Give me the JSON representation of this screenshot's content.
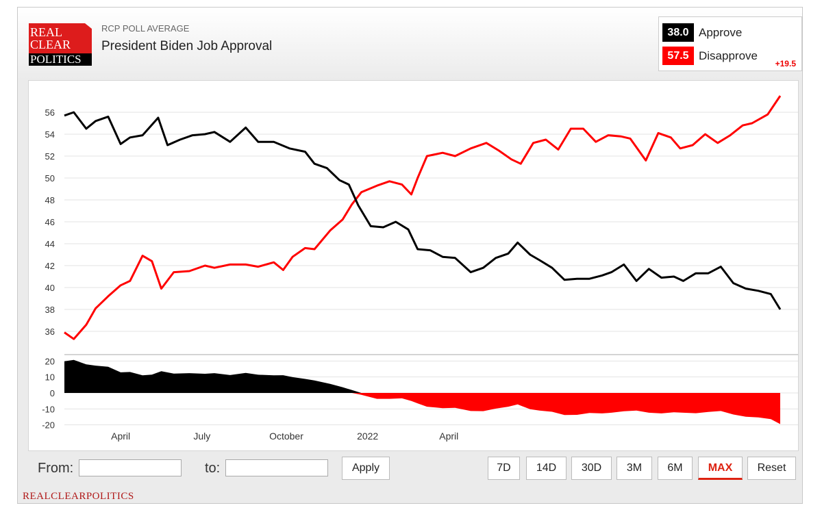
{
  "header": {
    "subtitle": "RCP POLL AVERAGE",
    "title": "President Biden Job Approval",
    "logo_lines": [
      "REAL",
      "CLEAR",
      "POLITICS"
    ]
  },
  "legend": {
    "approve": {
      "value": "38.0",
      "label": "Approve",
      "color": "#000000"
    },
    "disapprove": {
      "value": "57.5",
      "label": "Disapprove",
      "color": "#ff0000",
      "spread": "+19.5"
    }
  },
  "controls": {
    "from_label": "From:",
    "to_label": "to:",
    "from_value": "",
    "to_value": "",
    "apply_label": "Apply",
    "ranges": [
      "7D",
      "14D",
      "30D",
      "3M",
      "6M",
      "MAX",
      "Reset"
    ],
    "active_range": "MAX"
  },
  "footer": "REALCLEARPOLITICS",
  "chart_data": {
    "type": "line",
    "x_tick_labels": [
      "April",
      "July",
      "October",
      "2022",
      "April"
    ],
    "main_panel": {
      "ylim": [
        34,
        58
      ],
      "yticks": [
        36,
        38,
        40,
        42,
        44,
        46,
        48,
        50,
        52,
        54,
        56
      ],
      "series": [
        {
          "name": "Approve",
          "color": "#000000",
          "points": [
            [
              0,
              55.7
            ],
            [
              3,
              56.0
            ],
            [
              7,
              54.5
            ],
            [
              10,
              55.2
            ],
            [
              14,
              55.6
            ],
            [
              18,
              53.1
            ],
            [
              21,
              53.7
            ],
            [
              25,
              53.9
            ],
            [
              30,
              55.5
            ],
            [
              33,
              53.0
            ],
            [
              37,
              53.5
            ],
            [
              41,
              53.9
            ],
            [
              45,
              54.0
            ],
            [
              48,
              54.2
            ],
            [
              53,
              53.3
            ],
            [
              58,
              54.6
            ],
            [
              62,
              53.3
            ],
            [
              67,
              53.3
            ],
            [
              72,
              52.7
            ],
            [
              77,
              52.4
            ],
            [
              80,
              51.3
            ],
            [
              84,
              50.9
            ],
            [
              88,
              49.8
            ],
            [
              91,
              49.4
            ],
            [
              94,
              47.5
            ],
            [
              98,
              45.6
            ],
            [
              102,
              45.5
            ],
            [
              106,
              46.0
            ],
            [
              110,
              45.3
            ],
            [
              113,
              43.5
            ],
            [
              117,
              43.4
            ],
            [
              121,
              42.8
            ],
            [
              125,
              42.7
            ],
            [
              130,
              41.4
            ],
            [
              134,
              41.8
            ],
            [
              138,
              42.7
            ],
            [
              142,
              43.1
            ],
            [
              145,
              44.1
            ],
            [
              149,
              43.0
            ],
            [
              152,
              42.5
            ],
            [
              156,
              41.8
            ],
            [
              160,
              40.7
            ],
            [
              164,
              40.8
            ],
            [
              168,
              40.8
            ],
            [
              172,
              41.1
            ],
            [
              175,
              41.4
            ],
            [
              179,
              42.1
            ],
            [
              183,
              40.6
            ],
            [
              187,
              41.7
            ],
            [
              191,
              40.9
            ],
            [
              195,
              41.0
            ],
            [
              198,
              40.6
            ],
            [
              202,
              41.3
            ],
            [
              206,
              41.3
            ],
            [
              210,
              41.9
            ],
            [
              214,
              40.4
            ],
            [
              218,
              39.9
            ],
            [
              222,
              39.7
            ],
            [
              226,
              39.4
            ],
            [
              229,
              38.0
            ]
          ]
        },
        {
          "name": "Disapprove",
          "color": "#ff0000",
          "points": [
            [
              0,
              35.9
            ],
            [
              3,
              35.3
            ],
            [
              7,
              36.6
            ],
            [
              10,
              38.1
            ],
            [
              14,
              39.2
            ],
            [
              18,
              40.2
            ],
            [
              21,
              40.6
            ],
            [
              25,
              42.9
            ],
            [
              28,
              42.4
            ],
            [
              31,
              39.9
            ],
            [
              35,
              41.4
            ],
            [
              40,
              41.5
            ],
            [
              45,
              42.0
            ],
            [
              48,
              41.8
            ],
            [
              53,
              42.1
            ],
            [
              58,
              42.1
            ],
            [
              62,
              41.9
            ],
            [
              67,
              42.3
            ],
            [
              70,
              41.6
            ],
            [
              73,
              42.8
            ],
            [
              77,
              43.6
            ],
            [
              80,
              43.5
            ],
            [
              85,
              45.2
            ],
            [
              89,
              46.2
            ],
            [
              92,
              47.6
            ],
            [
              95,
              48.7
            ],
            [
              100,
              49.3
            ],
            [
              104,
              49.7
            ],
            [
              108,
              49.4
            ],
            [
              111,
              48.5
            ],
            [
              113,
              50.0
            ],
            [
              116,
              52.0
            ],
            [
              121,
              52.3
            ],
            [
              125,
              52.0
            ],
            [
              130,
              52.7
            ],
            [
              135,
              53.2
            ],
            [
              139,
              52.5
            ],
            [
              143,
              51.7
            ],
            [
              146,
              51.3
            ],
            [
              150,
              53.2
            ],
            [
              154,
              53.5
            ],
            [
              158,
              52.6
            ],
            [
              162,
              54.5
            ],
            [
              166,
              54.5
            ],
            [
              170,
              53.3
            ],
            [
              174,
              53.9
            ],
            [
              178,
              53.8
            ],
            [
              181,
              53.6
            ],
            [
              186,
              51.6
            ],
            [
              190,
              54.1
            ],
            [
              194,
              53.7
            ],
            [
              197,
              52.7
            ],
            [
              201,
              53.0
            ],
            [
              205,
              54.0
            ],
            [
              209,
              53.2
            ],
            [
              213,
              53.9
            ],
            [
              217,
              54.8
            ],
            [
              220,
              55.0
            ],
            [
              225,
              55.8
            ],
            [
              229,
              57.5
            ]
          ]
        }
      ]
    },
    "spread_panel": {
      "ylim": [
        -24,
        24
      ],
      "yticks": [
        20,
        10,
        0,
        -10,
        -20
      ],
      "series": {
        "name": "Spread",
        "positive_color": "#000000",
        "negative_color": "#ff0000",
        "values": [
          [
            0,
            19.8
          ],
          [
            3,
            20.7
          ],
          [
            7,
            17.9
          ],
          [
            10,
            17.1
          ],
          [
            14,
            16.4
          ],
          [
            18,
            12.9
          ],
          [
            21,
            13.1
          ],
          [
            25,
            11.0
          ],
          [
            28,
            11.5
          ],
          [
            31,
            13.6
          ],
          [
            35,
            12.1
          ],
          [
            40,
            12.4
          ],
          [
            45,
            12.0
          ],
          [
            48,
            12.4
          ],
          [
            53,
            11.2
          ],
          [
            58,
            12.5
          ],
          [
            62,
            11.4
          ],
          [
            67,
            11.0
          ],
          [
            70,
            11.1
          ],
          [
            73,
            9.9
          ],
          [
            77,
            8.8
          ],
          [
            80,
            7.8
          ],
          [
            85,
            5.7
          ],
          [
            89,
            3.6
          ],
          [
            92,
            1.8
          ],
          [
            95,
            -1.2
          ],
          [
            100,
            -3.7
          ],
          [
            104,
            -3.7
          ],
          [
            108,
            -3.4
          ],
          [
            111,
            -5.0
          ],
          [
            113,
            -6.5
          ],
          [
            116,
            -8.6
          ],
          [
            121,
            -9.5
          ],
          [
            125,
            -9.3
          ],
          [
            130,
            -11.3
          ],
          [
            134,
            -11.4
          ],
          [
            138,
            -9.8
          ],
          [
            142,
            -8.6
          ],
          [
            145,
            -7.2
          ],
          [
            149,
            -10.2
          ],
          [
            152,
            -11.0
          ],
          [
            156,
            -11.8
          ],
          [
            160,
            -13.8
          ],
          [
            164,
            -13.7
          ],
          [
            168,
            -12.5
          ],
          [
            172,
            -12.8
          ],
          [
            175,
            -12.4
          ],
          [
            179,
            -11.5
          ],
          [
            183,
            -11.0
          ],
          [
            187,
            -12.4
          ],
          [
            191,
            -12.8
          ],
          [
            195,
            -12.1
          ],
          [
            198,
            -12.4
          ],
          [
            202,
            -12.7
          ],
          [
            206,
            -11.9
          ],
          [
            210,
            -11.3
          ],
          [
            214,
            -13.5
          ],
          [
            218,
            -14.9
          ],
          [
            222,
            -15.3
          ],
          [
            226,
            -16.4
          ],
          [
            229,
            -19.5
          ]
        ]
      }
    }
  }
}
